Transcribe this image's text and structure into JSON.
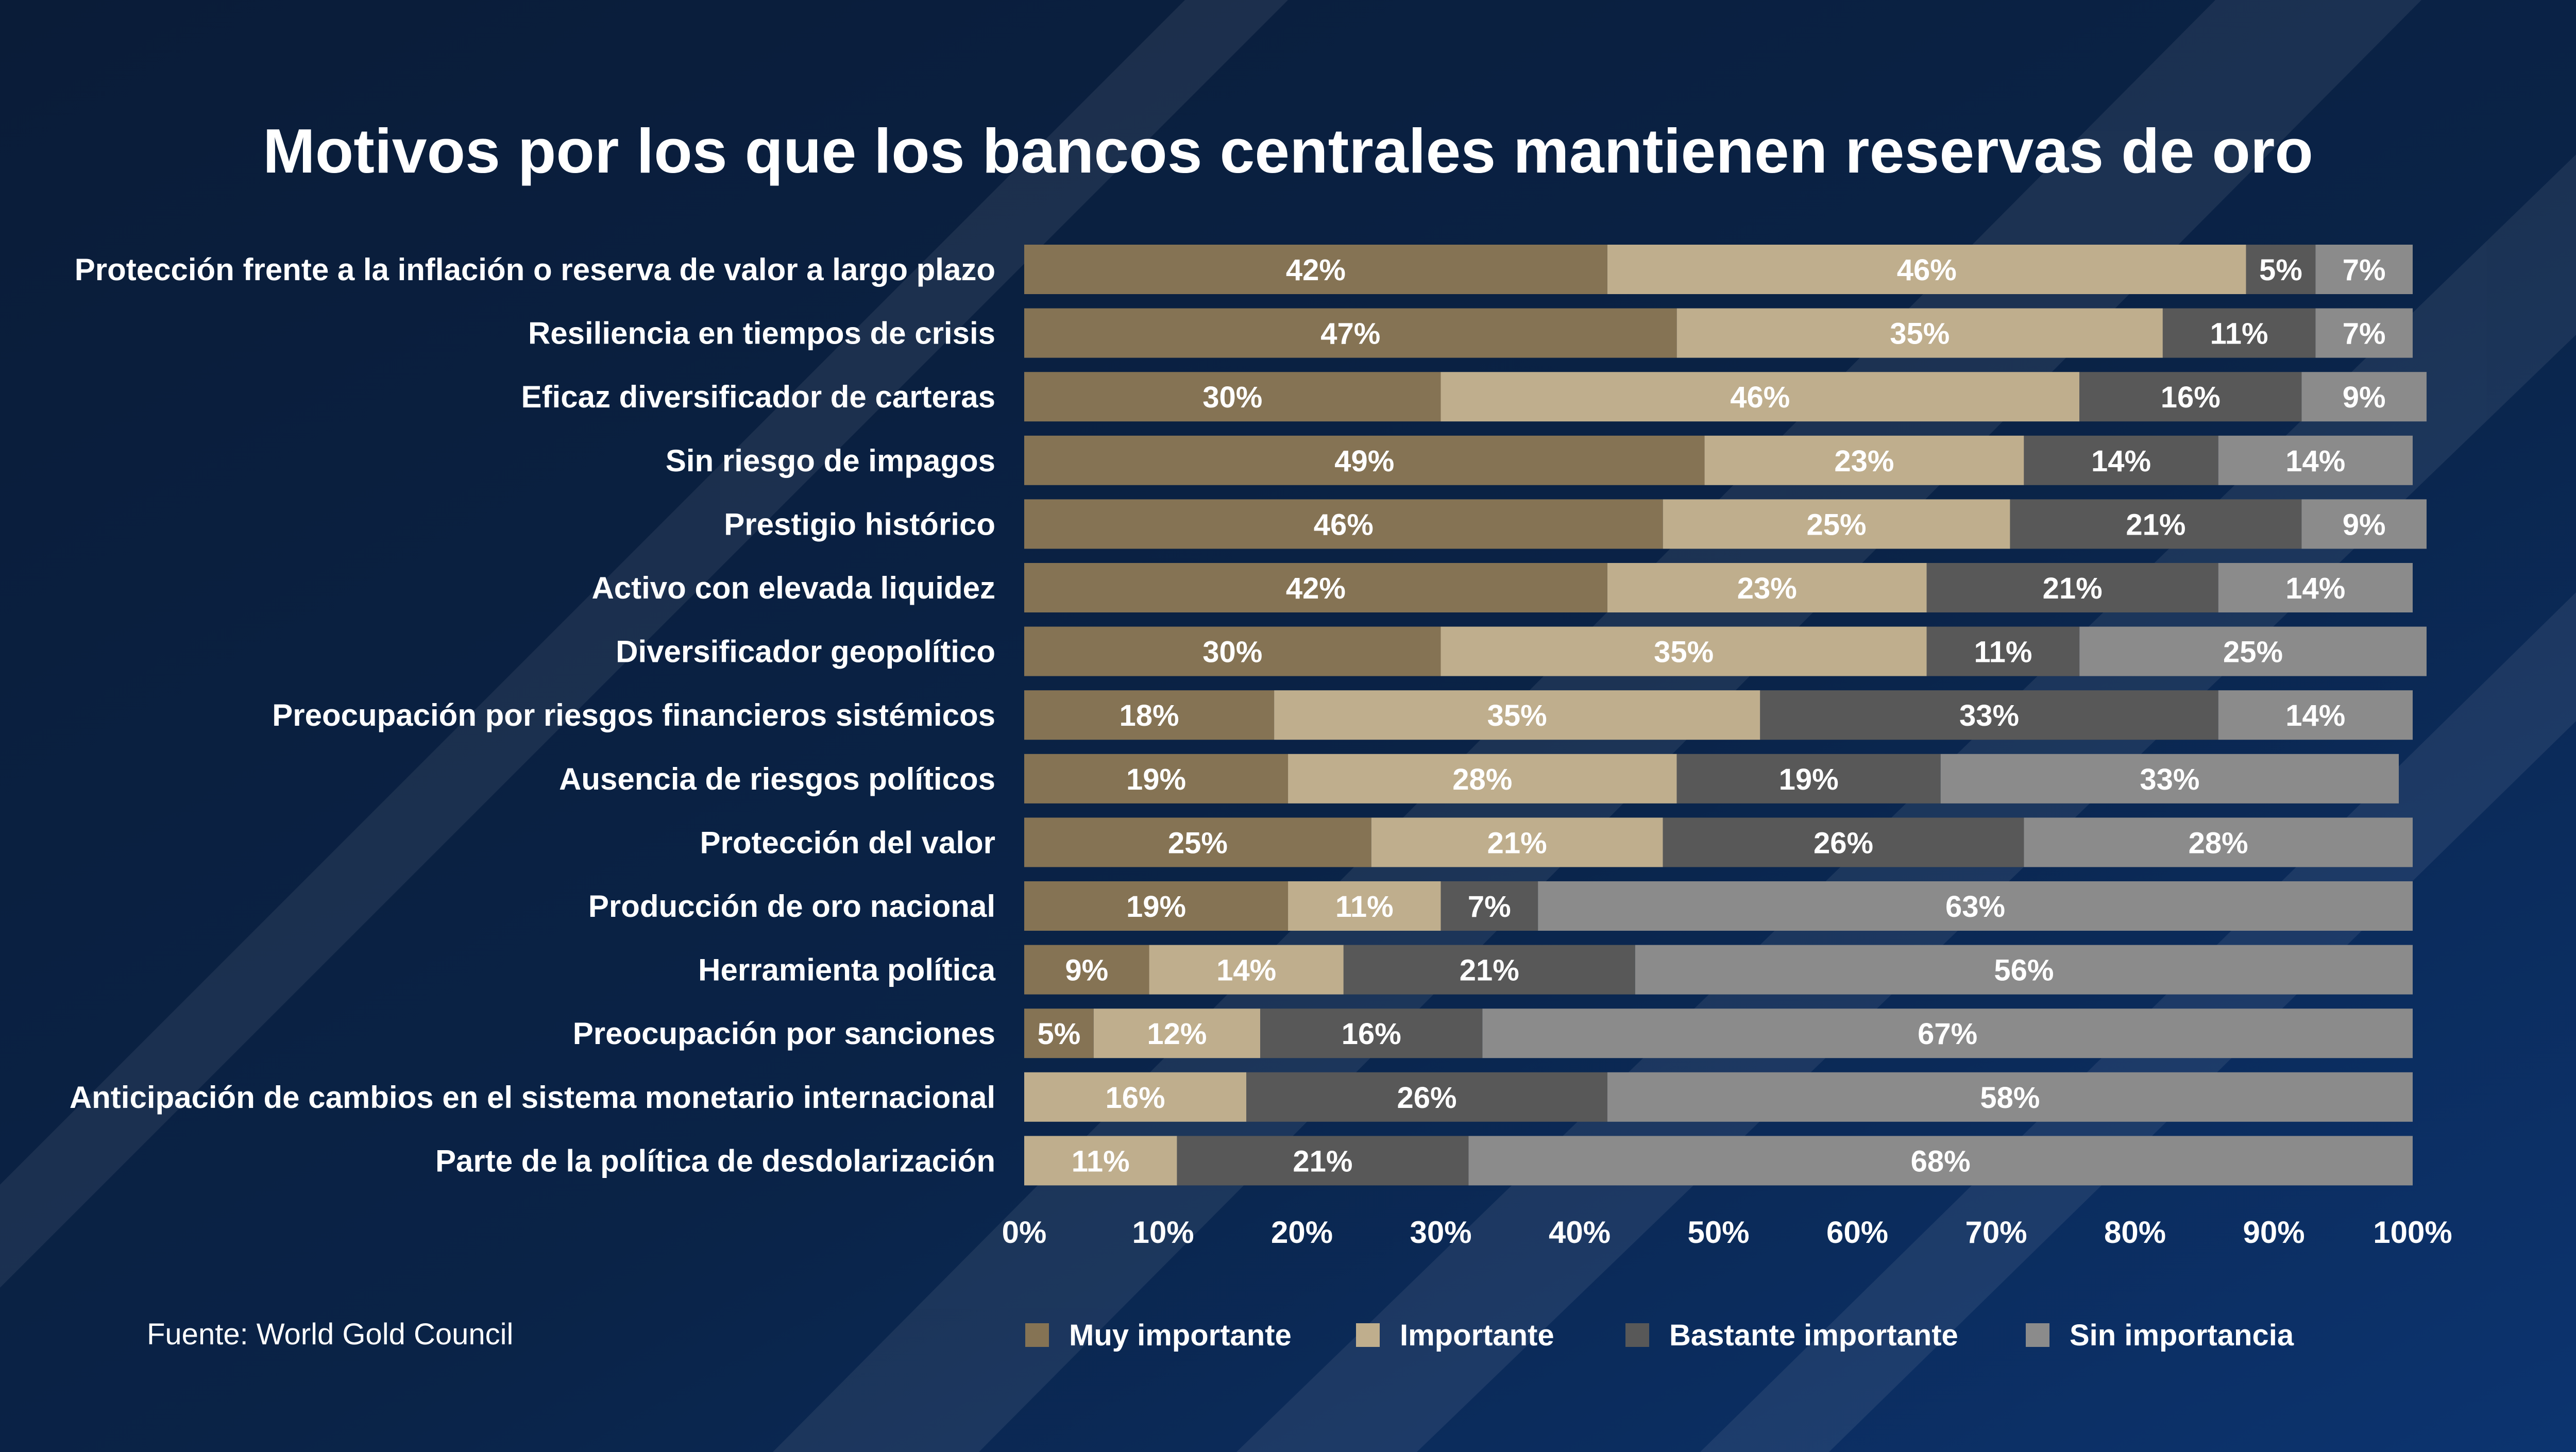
{
  "chart_data": {
    "type": "bar",
    "orientation": "horizontal",
    "stacked": true,
    "title": "Motivos por los que los bancos centrales mantienen reservas de oro",
    "source": "Fuente: World Gold Council",
    "xlim": [
      0,
      100
    ],
    "x_ticks": [
      "0%",
      "10%",
      "20%",
      "30%",
      "40%",
      "50%",
      "60%",
      "70%",
      "80%",
      "90%",
      "100%"
    ],
    "legend_position": "bottom",
    "grid": false,
    "categories": [
      "Protección frente a la inflación o reserva de valor a largo plazo",
      "Resiliencia en tiempos de crisis",
      "Eficaz diversificador de carteras",
      "Sin riesgo de impagos",
      "Prestigio histórico",
      "Activo con elevada liquidez",
      "Diversificador geopolítico",
      "Preocupación por riesgos financieros sistémicos",
      "Ausencia de riesgos políticos",
      "Protección del valor",
      "Producción de oro nacional",
      "Herramienta política",
      "Preocupación por sanciones",
      "Anticipación de cambios en el sistema monetario internacional",
      "Parte de la política de desdolarización"
    ],
    "series": [
      {
        "name": "Muy importante",
        "color": "#857354",
        "values": [
          42,
          47,
          30,
          49,
          46,
          42,
          30,
          18,
          19,
          25,
          19,
          9,
          5,
          0,
          0
        ]
      },
      {
        "name": "Importante",
        "color": "#bfae8d",
        "values": [
          46,
          35,
          46,
          23,
          25,
          23,
          35,
          35,
          28,
          21,
          11,
          14,
          12,
          16,
          11
        ]
      },
      {
        "name": "Bastante importante",
        "color": "#585858",
        "values": [
          5,
          11,
          16,
          14,
          21,
          21,
          11,
          33,
          19,
          26,
          7,
          21,
          16,
          26,
          21
        ]
      },
      {
        "name": "Sin importancia",
        "color": "#8b8b8b",
        "values": [
          7,
          7,
          9,
          14,
          9,
          14,
          25,
          14,
          33,
          28,
          63,
          56,
          67,
          58,
          68
        ]
      }
    ]
  }
}
